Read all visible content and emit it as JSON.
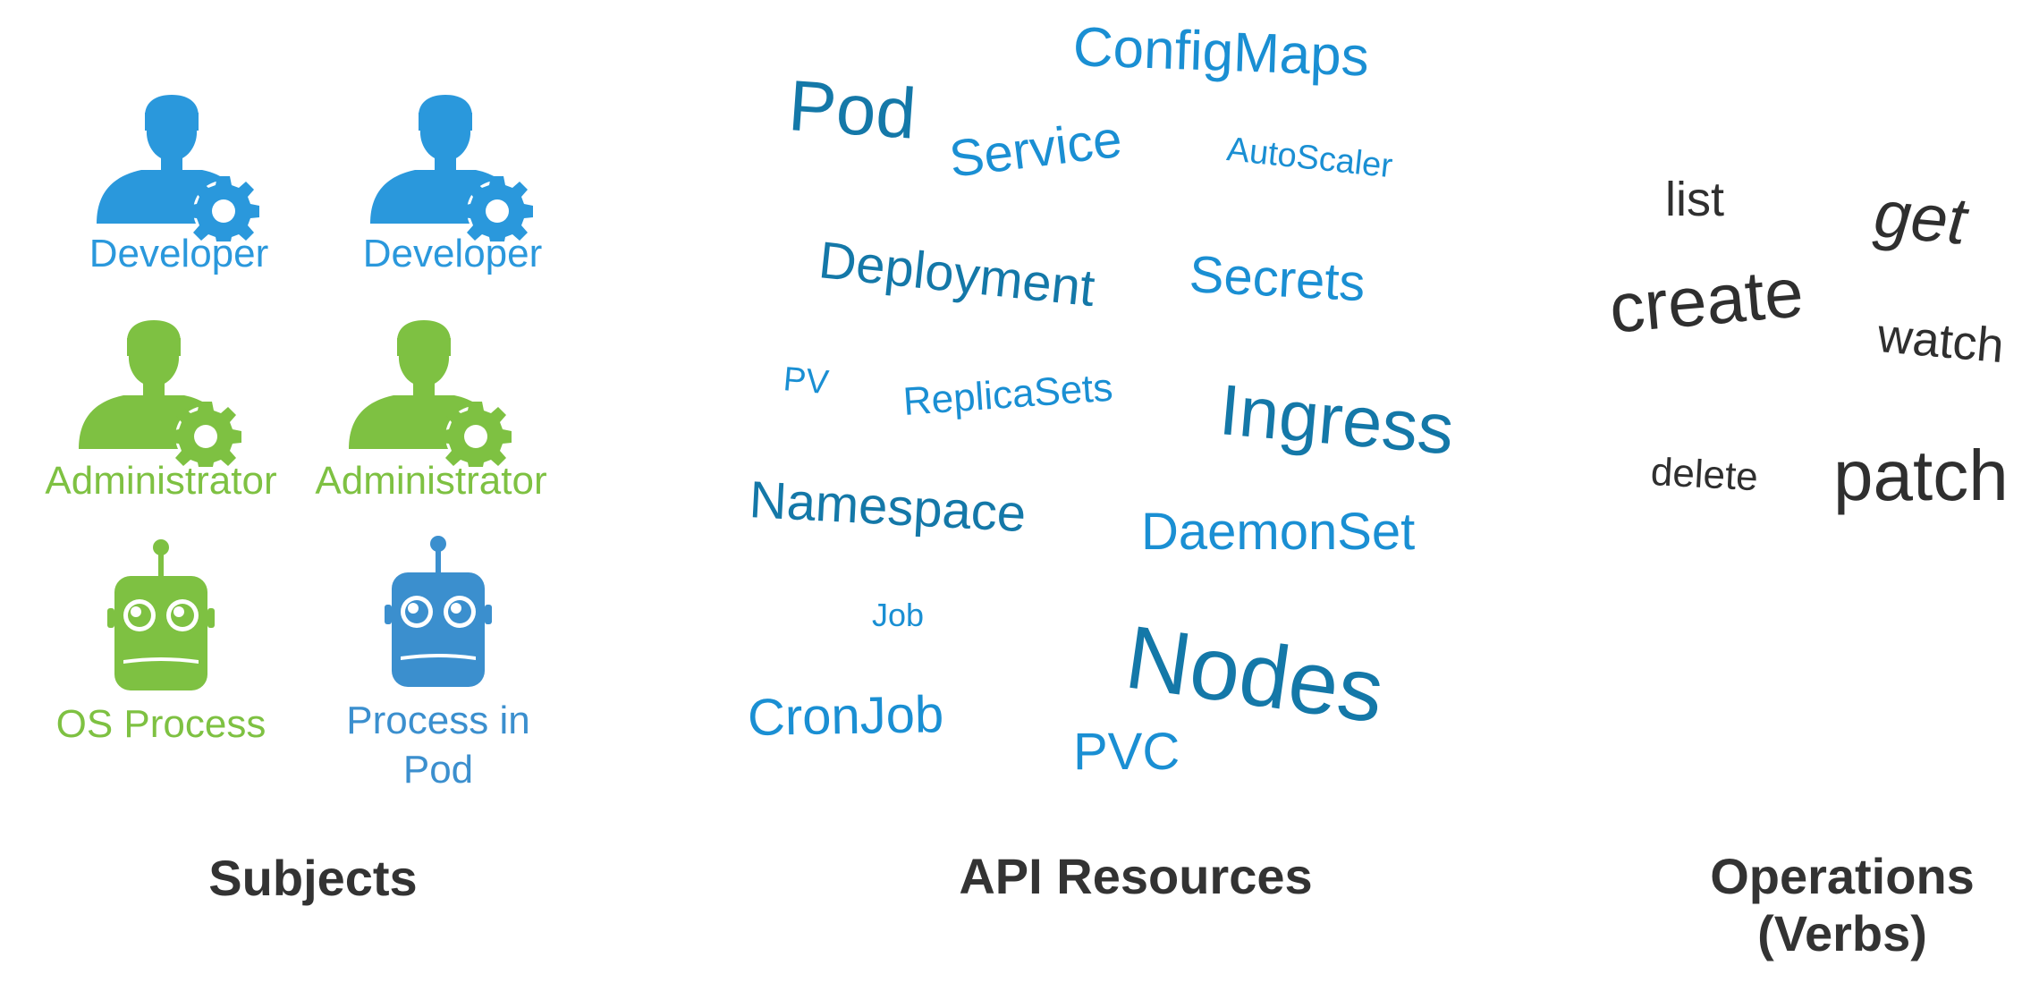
{
  "colors": {
    "blue": "#2a98dc",
    "green": "#7ec142",
    "robot_blue": "#3b8fce",
    "resource_blue": "#1a8fd3",
    "resource_dark": "#1478a8",
    "verb_dark": "#2f2f2f",
    "caption": "#333333"
  },
  "subjects": {
    "items": [
      {
        "label": "Developer",
        "icon": "developer-gear-icon",
        "color": "#2a98dc"
      },
      {
        "label": "Developer",
        "icon": "developer-gear-icon",
        "color": "#2a98dc"
      },
      {
        "label": "Administrator",
        "icon": "administrator-gear-icon",
        "color": "#7ec142"
      },
      {
        "label": "Administrator",
        "icon": "administrator-gear-icon",
        "color": "#7ec142"
      },
      {
        "label": "OS Process",
        "icon": "robot-icon",
        "color": "#7ec142"
      },
      {
        "label": "Process in Pod",
        "icon": "robot-icon",
        "color": "#3b8fce"
      }
    ],
    "caption": "Subjects"
  },
  "resources": {
    "words": [
      "ConfigMaps",
      "Pod",
      "Service",
      "AutoScaler",
      "Deployment",
      "Secrets",
      "PV",
      "ReplicaSets",
      "Ingress",
      "Namespace",
      "DaemonSet",
      "Job",
      "Nodes",
      "CronJob",
      "PVC"
    ],
    "caption": "API Resources"
  },
  "operations": {
    "words": [
      "list",
      "get",
      "create",
      "watch",
      "delete",
      "patch"
    ],
    "caption_line1": "Operations",
    "caption_line2": "(Verbs)"
  }
}
